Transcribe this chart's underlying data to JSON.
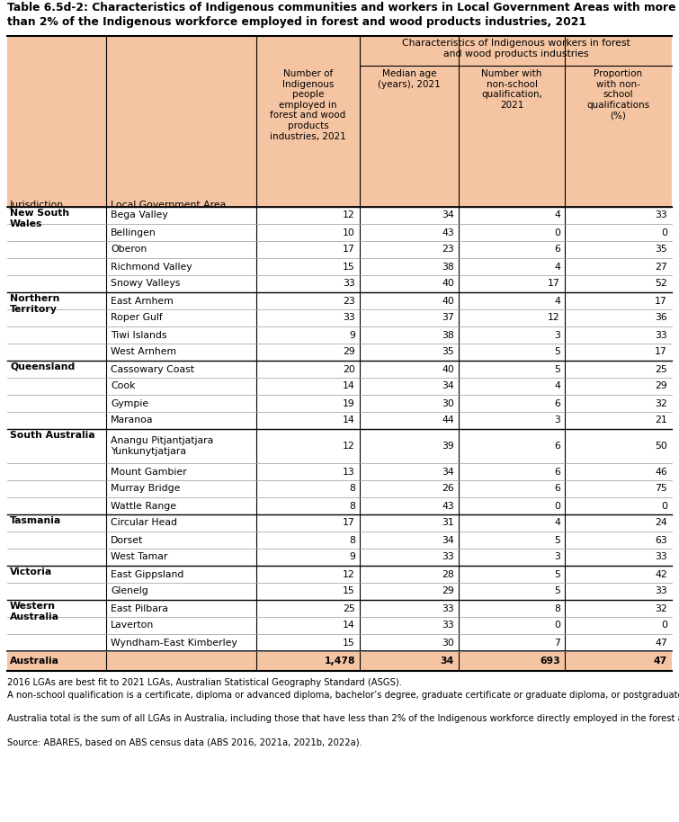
{
  "title_line1": "Table 6.5d-2: Characteristics of Indigenous communities and workers in Local Government Areas with more",
  "title_line2": "than 2% of the Indigenous workforce employed in forest and wood products industries, 2021",
  "span_header": "Characteristics of Indigenous workers in forest\nand wood products industries",
  "col_headers": [
    "Number of\nIndigenous\npeople\nemployed in\nforest and wood\nproducts\nindustries, 2021",
    "Median age\n(years), 2021",
    "Number with\nnon-school\nqualification,\n2021",
    "Proportion\nwith non-\nschool\nqualifications\n(%)"
  ],
  "col0_header": "Jurisdiction",
  "col1_header": "Local Government Area",
  "bg_color": "#F5C5A3",
  "rows": [
    {
      "jur": "New South\nWales",
      "lga": "Bega Valley",
      "v1": "12",
      "v2": "34",
      "v3": "4",
      "v4": "33"
    },
    {
      "jur": "",
      "lga": "Bellingen",
      "v1": "10",
      "v2": "43",
      "v3": "0",
      "v4": "0"
    },
    {
      "jur": "",
      "lga": "Oberon",
      "v1": "17",
      "v2": "23",
      "v3": "6",
      "v4": "35"
    },
    {
      "jur": "",
      "lga": "Richmond Valley",
      "v1": "15",
      "v2": "38",
      "v3": "4",
      "v4": "27"
    },
    {
      "jur": "",
      "lga": "Snowy Valleys",
      "v1": "33",
      "v2": "40",
      "v3": "17",
      "v4": "52"
    },
    {
      "jur": "Northern\nTerritory",
      "lga": "East Arnhem",
      "v1": "23",
      "v2": "40",
      "v3": "4",
      "v4": "17"
    },
    {
      "jur": "",
      "lga": "Roper Gulf",
      "v1": "33",
      "v2": "37",
      "v3": "12",
      "v4": "36"
    },
    {
      "jur": "",
      "lga": "Tiwi Islands",
      "v1": "9",
      "v2": "38",
      "v3": "3",
      "v4": "33"
    },
    {
      "jur": "",
      "lga": "West Arnhem",
      "v1": "29",
      "v2": "35",
      "v3": "5",
      "v4": "17"
    },
    {
      "jur": "Queensland",
      "lga": "Cassowary Coast",
      "v1": "20",
      "v2": "40",
      "v3": "5",
      "v4": "25"
    },
    {
      "jur": "",
      "lga": "Cook",
      "v1": "14",
      "v2": "34",
      "v3": "4",
      "v4": "29"
    },
    {
      "jur": "",
      "lga": "Gympie",
      "v1": "19",
      "v2": "30",
      "v3": "6",
      "v4": "32"
    },
    {
      "jur": "",
      "lga": "Maranoa",
      "v1": "14",
      "v2": "44",
      "v3": "3",
      "v4": "21"
    },
    {
      "jur": "South Australia",
      "lga": "Anangu Pitjantjatjara\nYunkunytjatjara",
      "v1": "12",
      "v2": "39",
      "v3": "6",
      "v4": "50"
    },
    {
      "jur": "",
      "lga": "Mount Gambier",
      "v1": "13",
      "v2": "34",
      "v3": "6",
      "v4": "46"
    },
    {
      "jur": "",
      "lga": "Murray Bridge",
      "v1": "8",
      "v2": "26",
      "v3": "6",
      "v4": "75"
    },
    {
      "jur": "",
      "lga": "Wattle Range",
      "v1": "8",
      "v2": "43",
      "v3": "0",
      "v4": "0"
    },
    {
      "jur": "Tasmania",
      "lga": "Circular Head",
      "v1": "17",
      "v2": "31",
      "v3": "4",
      "v4": "24"
    },
    {
      "jur": "",
      "lga": "Dorset",
      "v1": "8",
      "v2": "34",
      "v3": "5",
      "v4": "63"
    },
    {
      "jur": "",
      "lga": "West Tamar",
      "v1": "9",
      "v2": "33",
      "v3": "3",
      "v4": "33"
    },
    {
      "jur": "Victoria",
      "lga": "East Gippsland",
      "v1": "12",
      "v2": "28",
      "v3": "5",
      "v4": "42"
    },
    {
      "jur": "",
      "lga": "Glenelg",
      "v1": "15",
      "v2": "29",
      "v3": "5",
      "v4": "33"
    },
    {
      "jur": "Western\nAustralia",
      "lga": "East Pilbara",
      "v1": "25",
      "v2": "33",
      "v3": "8",
      "v4": "32"
    },
    {
      "jur": "",
      "lga": "Laverton",
      "v1": "14",
      "v2": "33",
      "v3": "0",
      "v4": "0"
    },
    {
      "jur": "",
      "lga": "Wyndham-East Kimberley",
      "v1": "15",
      "v2": "30",
      "v3": "7",
      "v4": "47"
    }
  ],
  "total_row": {
    "jur": "Australia",
    "v1": "1,478",
    "v2": "34",
    "v3": "693",
    "v4": "47"
  },
  "footnotes": [
    "2016 LGAs are best fit to 2021 LGAs, Australian Statistical Geography Standard (ASGS).",
    "A non-school qualification is a certificate, diploma or advanced diploma, bachelor’s degree, graduate certificate or graduate diploma, or postgraduate degree.",
    "Australia total is the sum of all LGAs in Australia, including those that have less than 2% of the Indigenous workforce directly employed in the forest and wood products industries.",
    "Source: ABARES, based on ABS census data (ABS 2016, 2021a, 2021b, 2022a)."
  ]
}
